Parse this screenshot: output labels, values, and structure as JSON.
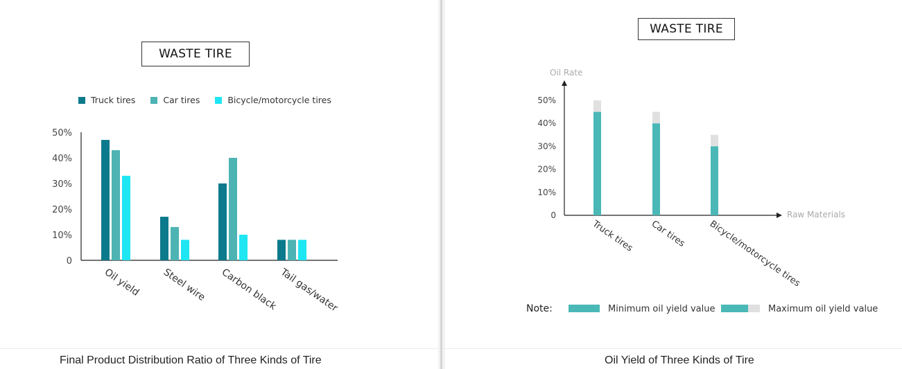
{
  "colors": {
    "truck": "#0b7a8c",
    "car": "#4db3b3",
    "bicycle": "#1ee6f2",
    "oil_min": "#4ab8b6",
    "oil_max": "#e0e0e0",
    "axis": "#222222",
    "text": "#333333"
  },
  "left": {
    "title": "WASTE TIRE",
    "caption": "Final Product Distribution Ratio of Three Kinds of Tire"
  },
  "right": {
    "title": "WASTE TIRE",
    "caption": "Oil Yield of Three Kinds of Tire",
    "note_label": "Note:"
  },
  "chart_data": [
    {
      "type": "bar",
      "title": "WASTE TIRE",
      "categories": [
        "Oil yield",
        "Steel wire",
        "Carbon black",
        "Tail gas/water"
      ],
      "series": [
        {
          "name": "Truck tires",
          "values": [
            47,
            17,
            30,
            8
          ]
        },
        {
          "name": "Car tires",
          "values": [
            43,
            13,
            40,
            8
          ]
        },
        {
          "name": "Bicycle/motorcycle tires",
          "values": [
            33,
            8,
            10,
            8
          ]
        }
      ],
      "yticks": [
        "0",
        "10%",
        "20%",
        "30%",
        "40%",
        "50%"
      ],
      "ylim": [
        0,
        50
      ],
      "legend": "top",
      "grid": false
    },
    {
      "type": "bar",
      "title": "WASTE TIRE",
      "categories": [
        "Truck tires",
        "Car tires",
        "Bicycle/motorcycle tires"
      ],
      "series": [
        {
          "name": "Minimum oil yield value",
          "values": [
            45,
            40,
            30
          ]
        },
        {
          "name": "Maximum oil yield value",
          "values": [
            50,
            45,
            35
          ]
        }
      ],
      "ylabel": "Oil Rate",
      "xlabel": "Raw Materials",
      "yticks": [
        "0",
        "10%",
        "20%",
        "30%",
        "40%",
        "50%"
      ],
      "ylim": [
        0,
        50
      ],
      "legend": "bottom",
      "grid": false
    }
  ]
}
